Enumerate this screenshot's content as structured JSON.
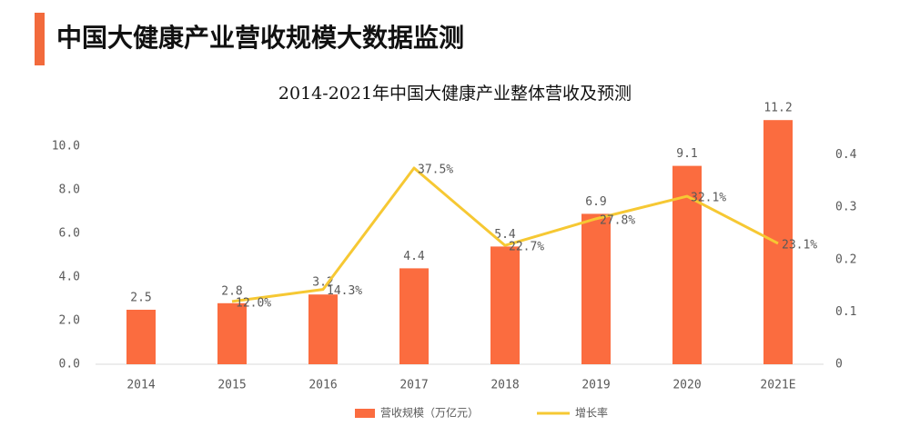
{
  "header": {
    "title": "中国大健康产业营收规模大数据监测"
  },
  "chart_data": {
    "type": "bar",
    "title": "2014-2021年中国大健康产业整体营收及预测",
    "categories": [
      "2014",
      "2015",
      "2016",
      "2017",
      "2018",
      "2019",
      "2020",
      "2021E"
    ],
    "series": [
      {
        "name": "营收规模（万亿元）",
        "type": "bar",
        "color": "#fb6c3f",
        "values": [
          2.5,
          2.8,
          3.2,
          4.4,
          5.4,
          6.9,
          9.1,
          11.2
        ]
      },
      {
        "name": "增长率",
        "type": "line",
        "axis": "y2",
        "color": "#f6c833",
        "values": [
          null,
          0.12,
          0.143,
          0.375,
          0.227,
          0.278,
          0.321,
          0.231
        ],
        "value_labels": [
          null,
          "12.0%",
          "14.3%",
          "37.5%",
          "22.7%",
          "27.8%",
          "32.1%",
          "23.1%"
        ]
      }
    ],
    "ylim": [
      0,
      12
    ],
    "yticks": [
      {
        "value": 0,
        "label": "0.0"
      },
      {
        "value": 2,
        "label": "2.0"
      },
      {
        "value": 4,
        "label": "4.0"
      },
      {
        "value": 6,
        "label": "6.0"
      },
      {
        "value": 8,
        "label": "8.0"
      },
      {
        "value": 10,
        "label": "10.0"
      }
    ],
    "y2lim": [
      0,
      0.5
    ],
    "y2ticks": [
      0,
      0.1,
      0.2,
      0.3,
      0.4
    ],
    "legend": "bottom"
  }
}
